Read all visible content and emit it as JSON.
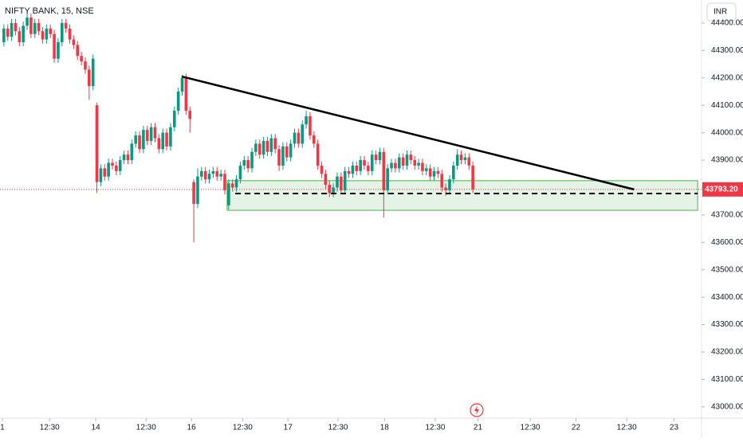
{
  "chart_data": {
    "type": "candlestick",
    "title": "NIFTY BANK, 15, NSE",
    "currency": "INR",
    "up_color": "#089981",
    "down_color": "#f23645",
    "xlim": [
      0,
      181
    ],
    "ylim": [
      42959,
      44484
    ],
    "xticks": [
      {
        "value": 0.6,
        "label": "1"
      },
      {
        "value": 12.8,
        "label": "12:30"
      },
      {
        "value": 24.7,
        "label": "14"
      },
      {
        "value": 37.7,
        "label": "12:30"
      },
      {
        "value": 49.4,
        "label": "16"
      },
      {
        "value": 62.6,
        "label": "12:30"
      },
      {
        "value": 74.3,
        "label": "17"
      },
      {
        "value": 87.2,
        "label": "12:30"
      },
      {
        "value": 99.2,
        "label": "18"
      },
      {
        "value": 112.3,
        "label": "12:30"
      },
      {
        "value": 123.3,
        "label": "21"
      },
      {
        "value": 136.8,
        "label": "12:30"
      },
      {
        "value": 148.6,
        "label": "22"
      },
      {
        "value": 161.7,
        "label": "12:30"
      },
      {
        "value": 173.9,
        "label": "23"
      }
    ],
    "yticks": [
      {
        "value": 44400,
        "label": "44400.00"
      },
      {
        "value": 44300,
        "label": "44300.00"
      },
      {
        "value": 44200,
        "label": "44200.00"
      },
      {
        "value": 44100,
        "label": "44100.00"
      },
      {
        "value": 44000,
        "label": "44000.00"
      },
      {
        "value": 43900,
        "label": "43900.00"
      },
      {
        "value": 43800,
        "label": "43800.00"
      },
      {
        "value": 43700,
        "label": "43700.00"
      },
      {
        "value": 43600,
        "label": "43600.00"
      },
      {
        "value": 43500,
        "label": "43500.00"
      },
      {
        "value": 43400,
        "label": "43400.00"
      },
      {
        "value": 43300,
        "label": "43300.00"
      },
      {
        "value": 43200,
        "label": "43200.00"
      },
      {
        "value": 43100,
        "label": "43100.00"
      },
      {
        "value": 43000,
        "label": "43000.00"
      }
    ],
    "last_price": {
      "value": 43793.2,
      "label": "43793.20"
    },
    "trendline": {
      "x": [
        46.9,
        163.6
      ],
      "y": [
        44205,
        43793
      ]
    },
    "support_line": {
      "x": [
        60.7,
        180
      ],
      "y": 43778
    },
    "zone": {
      "x": [
        58.6,
        180
      ],
      "y": [
        43717,
        43825
      ]
    },
    "candles": [
      [
        44330,
        44395,
        44315,
        44380
      ],
      [
        44380,
        44395,
        44335,
        44350
      ],
      [
        44350,
        44415,
        44335,
        44400
      ],
      [
        44400,
        44415,
        44355,
        44370
      ],
      [
        44370,
        44385,
        44315,
        44330
      ],
      [
        44330,
        44405,
        44315,
        44390
      ],
      [
        44390,
        44435,
        44375,
        44420
      ],
      [
        44420,
        44435,
        44345,
        44360
      ],
      [
        44360,
        44415,
        44345,
        44400
      ],
      [
        44400,
        44415,
        44355,
        44370
      ],
      [
        44370,
        44385,
        44325,
        44340
      ],
      [
        44340,
        44395,
        44325,
        44380
      ],
      [
        44380,
        44395,
        44345,
        44360
      ],
      [
        44360,
        44375,
        44255,
        44270
      ],
      [
        44270,
        44345,
        44255,
        44330
      ],
      [
        44330,
        44415,
        44315,
        44400
      ],
      [
        44400,
        44415,
        44365,
        44380
      ],
      [
        44380,
        44395,
        44325,
        44340
      ],
      [
        44340,
        44355,
        44305,
        44320
      ],
      [
        44320,
        44335,
        44265,
        44280
      ],
      [
        44280,
        44295,
        44245,
        44260
      ],
      [
        44260,
        44275,
        44215,
        44230
      ],
      [
        44230,
        44245,
        44120,
        44170
      ],
      [
        44170,
        44285,
        44155,
        44270
      ],
      [
        44100,
        44110,
        43780,
        43820
      ],
      [
        43820,
        43885,
        43805,
        43870
      ],
      [
        43870,
        43885,
        43825,
        43840
      ],
      [
        43840,
        43905,
        43825,
        43890
      ],
      [
        43890,
        43905,
        43865,
        43880
      ],
      [
        43880,
        43895,
        43845,
        43860
      ],
      [
        43860,
        43915,
        43845,
        43900
      ],
      [
        43900,
        43935,
        43885,
        43920
      ],
      [
        43920,
        43935,
        43885,
        43900
      ],
      [
        43900,
        43975,
        43885,
        43960
      ],
      [
        43960,
        44005,
        43945,
        43990
      ],
      [
        43990,
        44005,
        43925,
        43940
      ],
      [
        43940,
        44025,
        43925,
        44010
      ],
      [
        44010,
        44025,
        43955,
        43970
      ],
      [
        43970,
        44035,
        43955,
        44020
      ],
      [
        44020,
        44035,
        43965,
        43980
      ],
      [
        43980,
        43995,
        43925,
        43940
      ],
      [
        43940,
        44015,
        43925,
        44000
      ],
      [
        44000,
        44015,
        43935,
        43950
      ],
      [
        43950,
        44035,
        43935,
        44020
      ],
      [
        44020,
        44095,
        44005,
        44080
      ],
      [
        44080,
        44165,
        44065,
        44150
      ],
      [
        44150,
        44210,
        44135,
        44200
      ],
      [
        44200,
        44215,
        44065,
        44080
      ],
      [
        44080,
        44095,
        44000,
        44050
      ],
      [
        43820,
        43830,
        43600,
        43740
      ],
      [
        43740,
        43870,
        43725,
        43840
      ],
      [
        43840,
        43875,
        43825,
        43860
      ],
      [
        43860,
        43875,
        43815,
        43830
      ],
      [
        43830,
        43865,
        43815,
        43850
      ],
      [
        43850,
        43875,
        43835,
        43860
      ],
      [
        43860,
        43875,
        43825,
        43840
      ],
      [
        43840,
        43865,
        43825,
        43850
      ],
      [
        43850,
        43865,
        43775,
        43790
      ],
      [
        43735,
        43830,
        43720,
        43815
      ],
      [
        43815,
        43830,
        43785,
        43800
      ],
      [
        43800,
        43845,
        43785,
        43830
      ],
      [
        43830,
        43895,
        43815,
        43880
      ],
      [
        43880,
        43915,
        43865,
        43900
      ],
      [
        43900,
        43915,
        43855,
        43870
      ],
      [
        43870,
        43945,
        43855,
        43930
      ],
      [
        43930,
        43975,
        43915,
        43960
      ],
      [
        43960,
        43975,
        43905,
        43920
      ],
      [
        43920,
        43985,
        43905,
        43970
      ],
      [
        43970,
        43985,
        43915,
        43930
      ],
      [
        43930,
        43995,
        43915,
        43980
      ],
      [
        43980,
        43995,
        43925,
        43940
      ],
      [
        43940,
        43955,
        43860,
        43880
      ],
      [
        43880,
        43965,
        43865,
        43950
      ],
      [
        43950,
        43965,
        43895,
        43910
      ],
      [
        43910,
        43975,
        43895,
        43960
      ],
      [
        43960,
        44015,
        43945,
        44000
      ],
      [
        44000,
        44015,
        43945,
        43960
      ],
      [
        43960,
        44045,
        43945,
        44030
      ],
      [
        44030,
        44080,
        44015,
        44060
      ],
      [
        44060,
        44075,
        43975,
        43990
      ],
      [
        43990,
        44005,
        43945,
        43960
      ],
      [
        43960,
        43975,
        43865,
        43880
      ],
      [
        43880,
        43895,
        43835,
        43850
      ],
      [
        43850,
        43865,
        43795,
        43810
      ],
      [
        43810,
        43825,
        43765,
        43780
      ],
      [
        43780,
        43815,
        43765,
        43800
      ],
      [
        43800,
        43855,
        43785,
        43840
      ],
      [
        43840,
        43855,
        43775,
        43790
      ],
      [
        43790,
        43875,
        43775,
        43860
      ],
      [
        43860,
        43875,
        43835,
        43850
      ],
      [
        43850,
        43895,
        43835,
        43880
      ],
      [
        43880,
        43895,
        43845,
        43860
      ],
      [
        43860,
        43915,
        43845,
        43900
      ],
      [
        43900,
        43915,
        43865,
        43880
      ],
      [
        43880,
        43895,
        43845,
        43860
      ],
      [
        43860,
        43935,
        43845,
        43920
      ],
      [
        43920,
        43935,
        43885,
        43900
      ],
      [
        43900,
        43945,
        43885,
        43930
      ],
      [
        43930,
        43945,
        43690,
        43790
      ],
      [
        43790,
        43885,
        43775,
        43870
      ],
      [
        43870,
        43905,
        43855,
        43890
      ],
      [
        43890,
        43905,
        43855,
        43870
      ],
      [
        43870,
        43925,
        43855,
        43910
      ],
      [
        43910,
        43925,
        43865,
        43880
      ],
      [
        43880,
        43935,
        43865,
        43920
      ],
      [
        43920,
        43935,
        43885,
        43900
      ],
      [
        43900,
        43915,
        43865,
        43880
      ],
      [
        43880,
        43905,
        43865,
        43890
      ],
      [
        43890,
        43905,
        43845,
        43860
      ],
      [
        43860,
        43885,
        43845,
        43870
      ],
      [
        43870,
        43885,
        43825,
        43840
      ],
      [
        43840,
        43875,
        43825,
        43860
      ],
      [
        43860,
        43875,
        43835,
        43850
      ],
      [
        43850,
        43865,
        43785,
        43800
      ],
      [
        43800,
        43815,
        43770,
        43790
      ],
      [
        43790,
        43845,
        43775,
        43830
      ],
      [
        43830,
        43895,
        43815,
        43880
      ],
      [
        43880,
        43940,
        43865,
        43920
      ],
      [
        43920,
        43935,
        43885,
        43900
      ],
      [
        43900,
        43925,
        43885,
        43910
      ],
      [
        43910,
        43925,
        43865,
        43880
      ],
      [
        43880,
        43895,
        43780,
        43793.2
      ]
    ]
  }
}
